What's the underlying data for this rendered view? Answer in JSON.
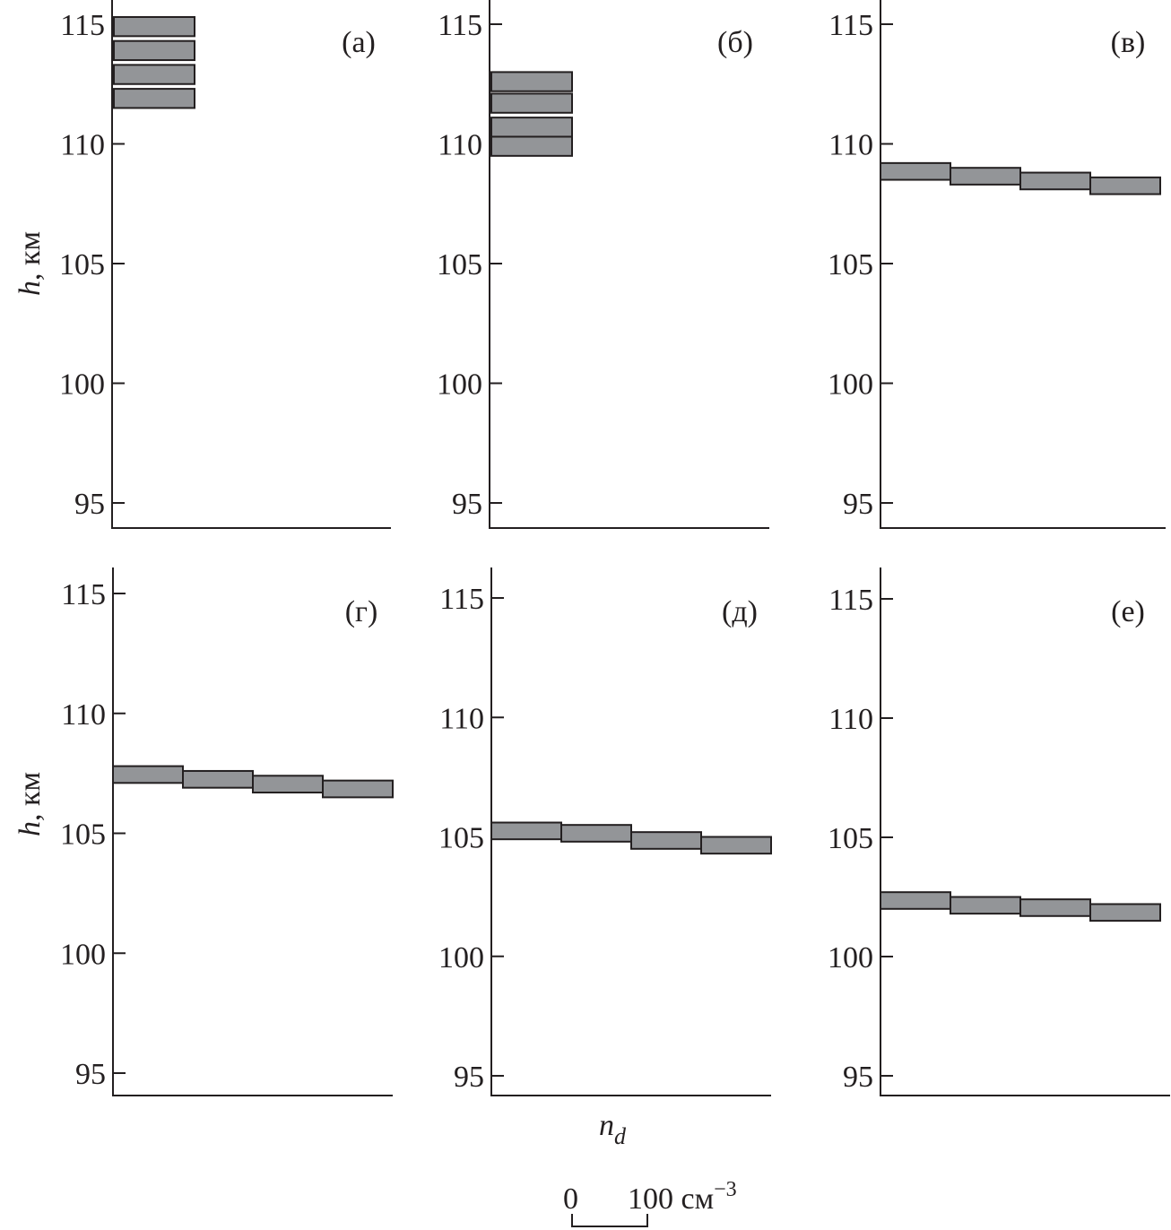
{
  "chart_data": {
    "type": "bar",
    "y_axis_label": {
      "italic": "h",
      "rest": ", км"
    },
    "x_axis_label": {
      "base": "n",
      "sub": "d"
    },
    "scale_bar": {
      "start": "0",
      "end": "100 см",
      "exp": "−3",
      "value": 100
    },
    "yticks": [
      95,
      100,
      105,
      110,
      115
    ],
    "ylim": [
      94,
      116
    ],
    "panels": [
      {
        "label": "(а)",
        "bars": [
          {
            "n": 100,
            "h_low": 114.5,
            "h_high": 115.3
          },
          {
            "n": 100,
            "h_low": 113.5,
            "h_high": 114.3
          },
          {
            "n": 100,
            "h_low": 112.5,
            "h_high": 113.3
          },
          {
            "n": 100,
            "h_low": 111.5,
            "h_high": 112.3
          }
        ]
      },
      {
        "label": "(б)",
        "bars": [
          {
            "n": 100,
            "h_low": 112.2,
            "h_high": 113.0
          },
          {
            "n": 100,
            "h_low": 111.3,
            "h_high": 112.1
          },
          {
            "n": 100,
            "h_low": 110.3,
            "h_high": 111.1
          },
          {
            "n": 100,
            "h_low": 109.5,
            "h_high": 110.3
          }
        ]
      },
      {
        "label": "(в)",
        "bars": [
          {
            "n": 100,
            "h_low": 108.5,
            "h_high": 109.2
          },
          {
            "n": 100,
            "h_low": 108.3,
            "h_high": 109.0
          },
          {
            "n": 100,
            "h_low": 108.1,
            "h_high": 108.8
          },
          {
            "n": 100,
            "h_low": 107.9,
            "h_high": 108.6
          }
        ]
      },
      {
        "label": "(г)",
        "bars": [
          {
            "n": 100,
            "h_low": 107.1,
            "h_high": 107.8
          },
          {
            "n": 100,
            "h_low": 106.9,
            "h_high": 107.6
          },
          {
            "n": 100,
            "h_low": 106.7,
            "h_high": 107.4
          },
          {
            "n": 100,
            "h_low": 106.5,
            "h_high": 107.2
          }
        ]
      },
      {
        "label": "(д)",
        "bars": [
          {
            "n": 100,
            "h_low": 104.9,
            "h_high": 105.6
          },
          {
            "n": 100,
            "h_low": 104.8,
            "h_high": 105.5
          },
          {
            "n": 100,
            "h_low": 104.5,
            "h_high": 105.2
          },
          {
            "n": 100,
            "h_low": 104.3,
            "h_high": 105.0
          }
        ]
      },
      {
        "label": "(е)",
        "bars": [
          {
            "n": 100,
            "h_low": 102.0,
            "h_high": 102.7
          },
          {
            "n": 100,
            "h_low": 101.8,
            "h_high": 102.5
          },
          {
            "n": 100,
            "h_low": 101.7,
            "h_high": 102.4
          },
          {
            "n": 100,
            "h_low": 101.5,
            "h_high": 102.2
          }
        ]
      }
    ]
  }
}
